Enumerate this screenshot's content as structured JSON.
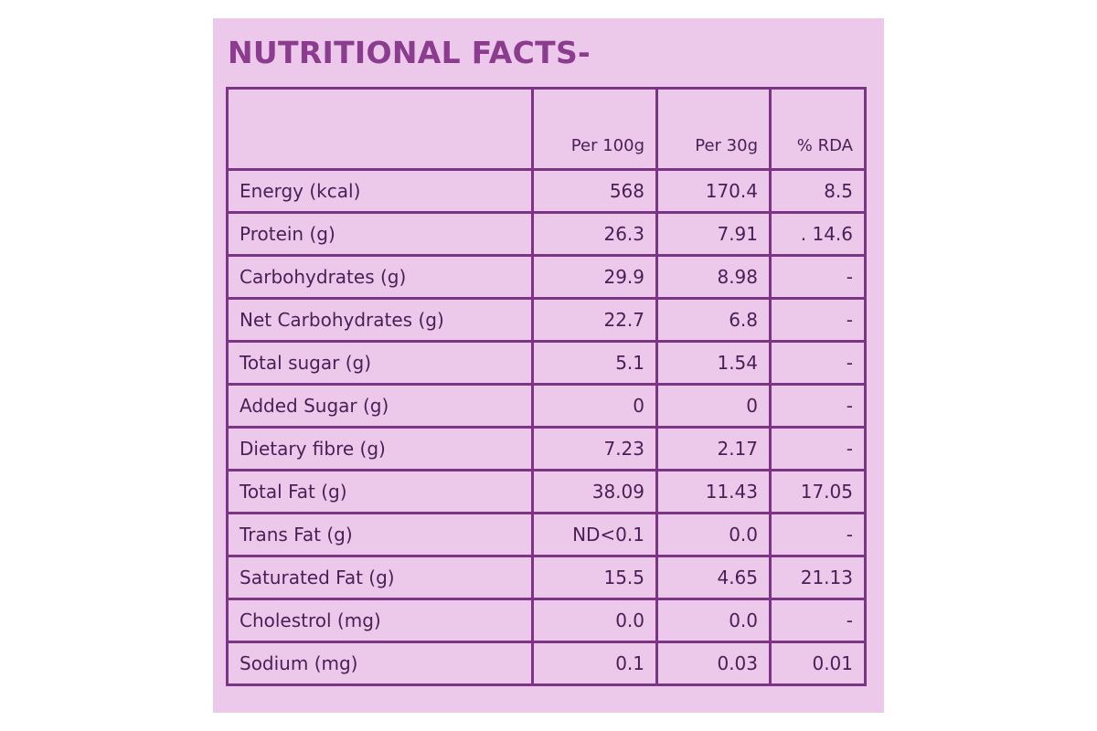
{
  "panel": {
    "title": "NUTRITIONAL FACTS-"
  },
  "table": {
    "headers": [
      "",
      "Per 100g",
      "Per 30g",
      "% RDA"
    ],
    "rows": [
      {
        "label": "Energy (kcal)",
        "per100": "568",
        "per30": "170.4",
        "rda": "8.5"
      },
      {
        "label": "Protein (g)",
        "per100": "26.3",
        "per30": "7.91",
        "rda": ". 14.6"
      },
      {
        "label": "Carbohydrates (g)",
        "per100": "29.9",
        "per30": "8.98",
        "rda": "-"
      },
      {
        "label": "Net Carbohydrates (g)",
        "per100": "22.7",
        "per30": "6.8",
        "rda": "-"
      },
      {
        "label": "Total sugar (g)",
        "per100": "5.1",
        "per30": "1.54",
        "rda": "-"
      },
      {
        "label": "Added Sugar (g)",
        "per100": "0",
        "per30": "0",
        "rda": "-"
      },
      {
        "label": "Dietary fibre (g)",
        "per100": "7.23",
        "per30": "2.17",
        "rda": "-"
      },
      {
        "label": "Total Fat (g)",
        "per100": "38.09",
        "per30": "11.43",
        "rda": "17.05"
      },
      {
        "label": "Trans Fat (g)",
        "per100": "ND<0.1",
        "per30": "0.0",
        "rda": "-"
      },
      {
        "label": "Saturated Fat (g)",
        "per100": "15.5",
        "per30": "4.65",
        "rda": "21.13"
      },
      {
        "label": "Cholestrol (mg)",
        "per100": "0.0",
        "per30": "0.0",
        "rda": "-"
      },
      {
        "label": "Sodium (mg)",
        "per100": "0.1",
        "per30": "0.03",
        "rda": "0.01"
      }
    ]
  },
  "colors": {
    "background": "#ecc8ea",
    "title": "#8b3c8f",
    "border": "#7c3585",
    "text": "#4a1f55"
  }
}
